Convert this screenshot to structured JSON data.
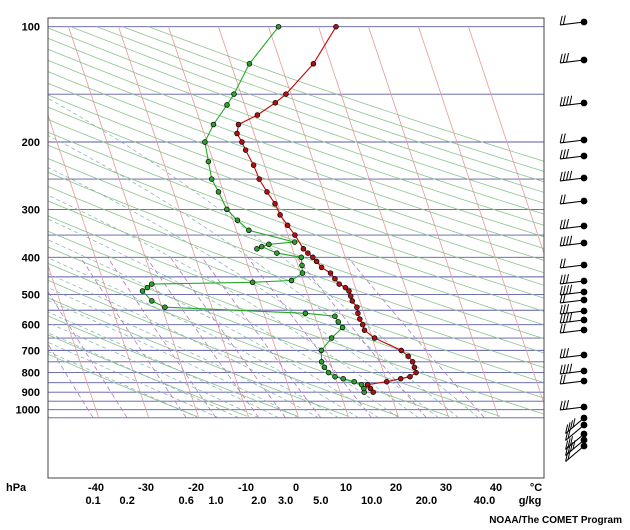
{
  "chart_data": {
    "type": "line",
    "title": "",
    "xlabel": "°C",
    "ylabel": "hPa",
    "mixing_ratio_unit": "g/kg",
    "pressure_ticks": [
      100,
      200,
      300,
      400,
      500,
      600,
      700,
      800,
      900,
      1000
    ],
    "temperature_ticks": [
      -40,
      -30,
      -20,
      -10,
      0,
      10,
      20,
      30,
      40
    ],
    "mixing_ratio_ticks": [
      "0.1",
      "0.2",
      "0.6",
      "1.0",
      "2.0",
      "3.0",
      "5.0",
      "10.0",
      "20.0",
      "40.0"
    ],
    "mixing_ratio_values": [
      0.1,
      0.2,
      0.6,
      1.0,
      2.0,
      3.0,
      5.0,
      10.0,
      20.0,
      40.0
    ],
    "xlim": [
      -50,
      50
    ],
    "ylim_hpa": [
      1050,
      100
    ],
    "series": [
      {
        "color": "#cc0000",
        "points": [
          [
            900,
            16.6
          ],
          [
            880,
            16.3
          ],
          [
            860,
            16.0
          ],
          [
            845,
            20
          ],
          [
            830,
            23
          ],
          [
            820,
            25
          ],
          [
            800,
            26.5
          ],
          [
            775,
            26.5
          ],
          [
            750,
            26.5
          ],
          [
            725,
            26
          ],
          [
            700,
            25
          ],
          [
            650,
            20.5
          ],
          [
            620,
            19
          ],
          [
            600,
            19
          ],
          [
            580,
            18.8
          ],
          [
            560,
            18.8
          ],
          [
            540,
            19
          ],
          [
            520,
            18.5
          ],
          [
            505,
            18.5
          ],
          [
            490,
            18.5
          ],
          [
            480,
            18
          ],
          [
            470,
            17
          ],
          [
            455,
            16.5
          ],
          [
            440,
            16
          ],
          [
            425,
            14.6
          ],
          [
            410,
            14
          ],
          [
            400,
            13.5
          ],
          [
            390,
            12.8
          ],
          [
            380,
            12.2
          ],
          [
            350,
            11.4
          ],
          [
            330,
            10.6
          ],
          [
            310,
            9.8
          ],
          [
            290,
            9.5
          ],
          [
            270,
            8.7
          ],
          [
            250,
            8
          ],
          [
            230,
            7.8
          ],
          [
            210,
            7.2
          ],
          [
            200,
            7
          ],
          [
            190,
            6.6
          ],
          [
            180,
            7.5
          ],
          [
            170,
            11.9
          ],
          [
            158,
            16.3
          ],
          [
            150,
            19
          ],
          [
            125,
            26.5
          ],
          [
            100,
            33.5
          ]
        ]
      },
      {
        "color": "#22aa22",
        "points": [
          [
            900,
            14.8
          ],
          [
            880,
            15
          ],
          [
            860,
            14.8
          ],
          [
            845,
            13.5
          ],
          [
            830,
            11.5
          ],
          [
            820,
            10
          ],
          [
            800,
            9
          ],
          [
            775,
            8.5
          ],
          [
            750,
            8.3
          ],
          [
            700,
            9
          ],
          [
            650,
            11.9
          ],
          [
            610,
            14.8
          ],
          [
            590,
            14.3
          ],
          [
            570,
            14
          ],
          [
            560,
            8.3
          ],
          [
            540,
            -19.4
          ],
          [
            520,
            -21.6
          ],
          [
            490,
            -22.8
          ],
          [
            480,
            -21.6
          ],
          [
            470,
            -20.5
          ],
          [
            465,
            -0.2
          ],
          [
            460,
            7.7
          ],
          [
            440,
            10.4
          ],
          [
            420,
            10.8
          ],
          [
            400,
            11.2
          ],
          [
            390,
            6.6
          ],
          [
            375,
            4
          ],
          [
            380,
            2.9
          ],
          [
            370,
            5.6
          ],
          [
            365,
            10.9
          ],
          [
            340,
            2.5
          ],
          [
            320,
            0.9
          ],
          [
            300,
            -0.5
          ],
          [
            270,
            -1
          ],
          [
            250,
            -1.5
          ],
          [
            225,
            -1
          ],
          [
            200,
            -0.4
          ],
          [
            180,
            2.5
          ],
          [
            160,
            6.5
          ],
          [
            150,
            8.6
          ],
          [
            125,
            13.7
          ],
          [
            100,
            22
          ]
        ]
      }
    ],
    "wind_barbs_present": true
  },
  "footer": {
    "credit": "NOAA/The COMET Program"
  }
}
